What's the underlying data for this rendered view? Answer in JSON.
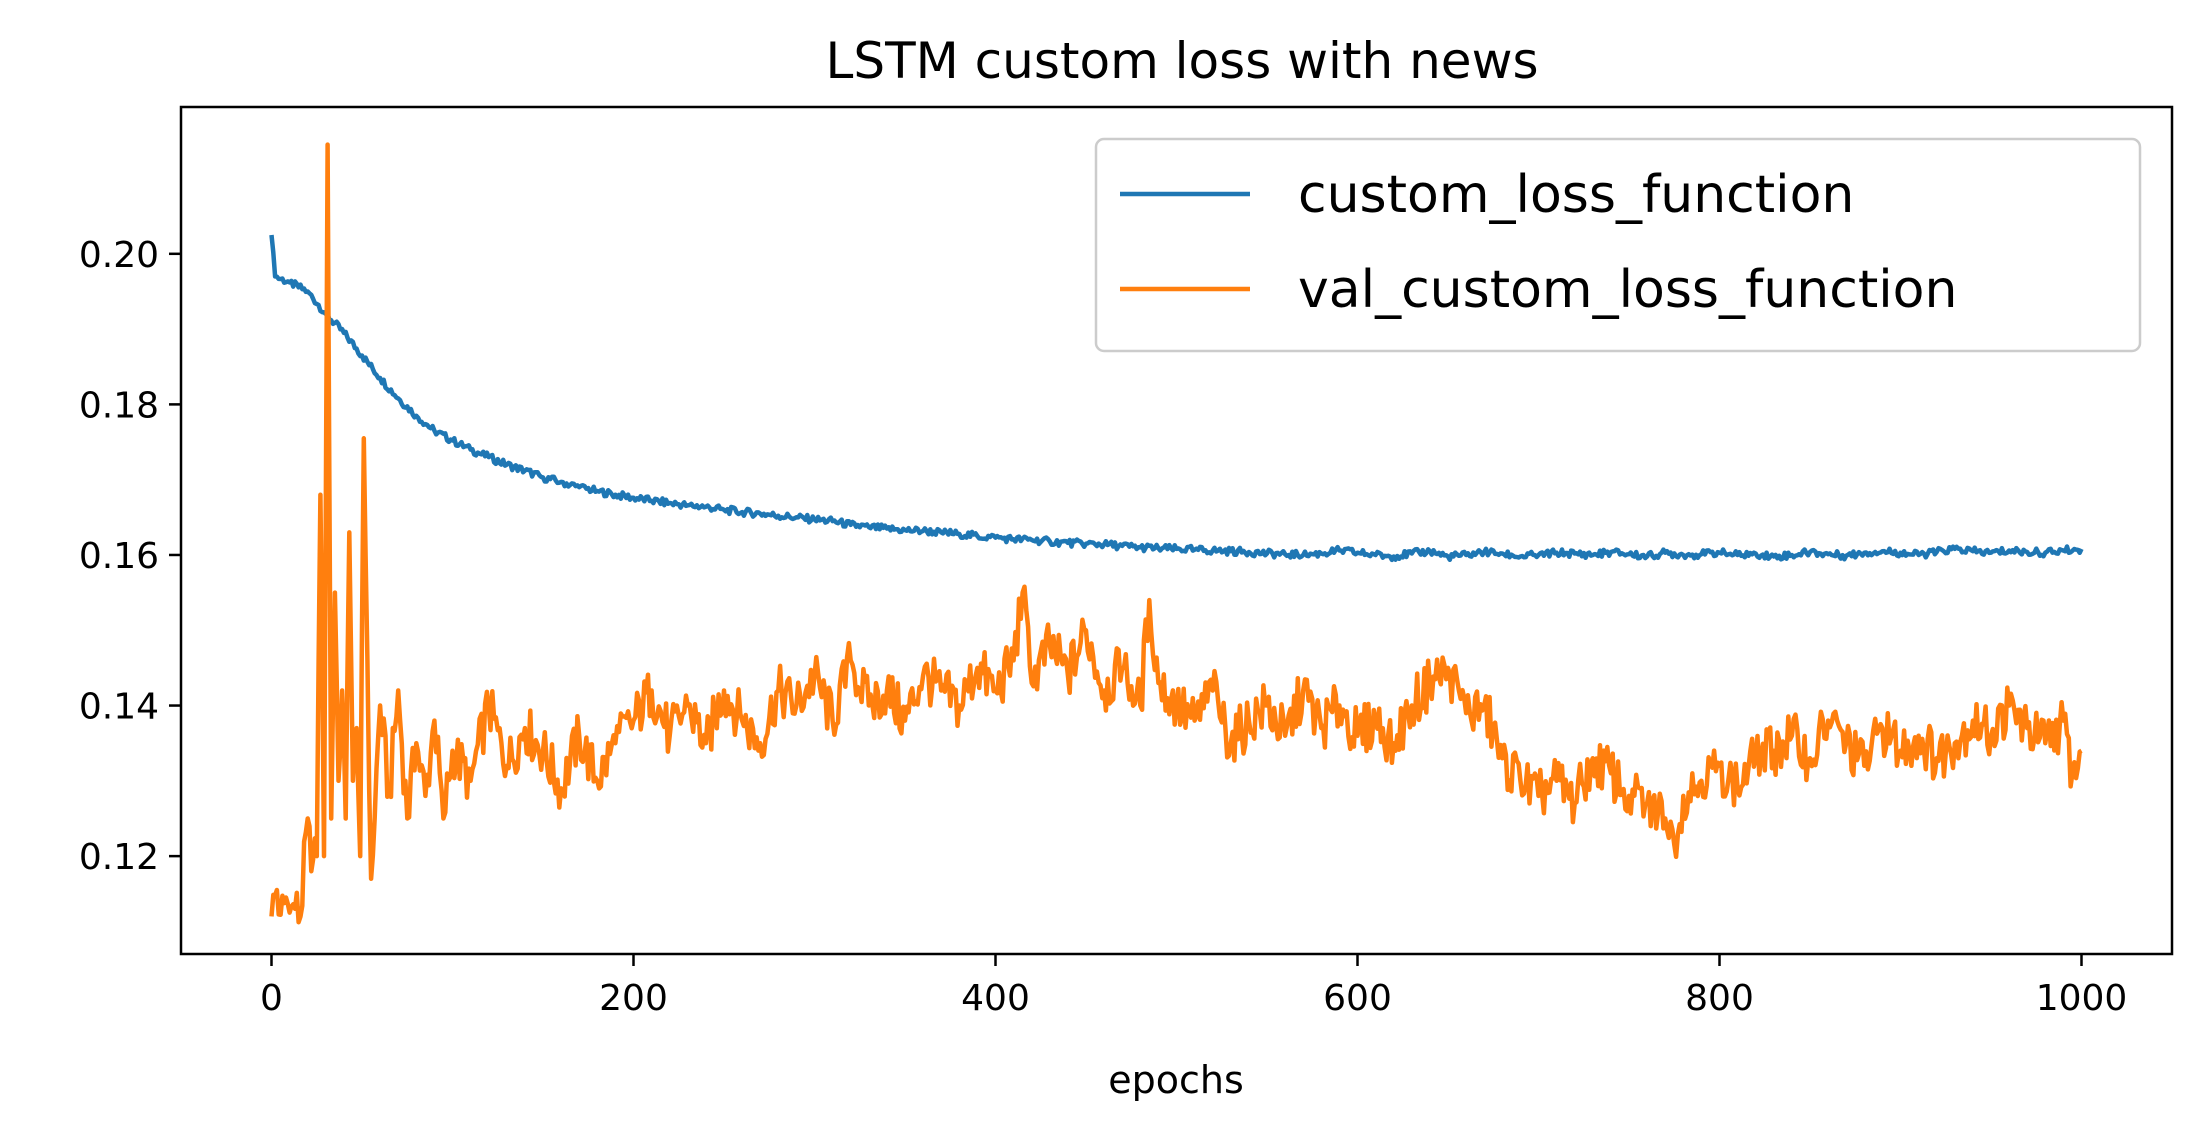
{
  "chart_data": {
    "type": "line",
    "title": "LSTM custom loss with news",
    "xlabel": "epochs",
    "ylabel": "",
    "xlim": [
      -50,
      1050
    ],
    "ylim": [
      0.107,
      0.2195
    ],
    "x_ticks": [
      0,
      200,
      400,
      600,
      800,
      1000
    ],
    "x_tick_labels": [
      "0",
      "200",
      "400",
      "600",
      "800",
      "1000"
    ],
    "y_ticks": [
      0.12,
      0.14,
      0.16,
      0.18,
      0.2
    ],
    "y_tick_labels": [
      "0.12",
      "0.14",
      "0.16",
      "0.18",
      "0.20"
    ],
    "grid": false,
    "legend_position": "top-right",
    "series": [
      {
        "name": "custom_loss_function",
        "color": "#1f77b4",
        "x": [
          0,
          2,
          10,
          20,
          30,
          40,
          50,
          60,
          70,
          80,
          90,
          100,
          110,
          120,
          130,
          140,
          150,
          160,
          170,
          180,
          190,
          200,
          210,
          220,
          230,
          240,
          250,
          260,
          270,
          280,
          290,
          300,
          310,
          320,
          330,
          340,
          350,
          360,
          370,
          380,
          390,
          400,
          410,
          420,
          430,
          440,
          450,
          460,
          470,
          480,
          490,
          500,
          510,
          520,
          530,
          540,
          550,
          560,
          570,
          580,
          590,
          600,
          610,
          620,
          630,
          640,
          650,
          660,
          670,
          680,
          690,
          700,
          710,
          720,
          730,
          740,
          750,
          760,
          770,
          780,
          790,
          800,
          810,
          820,
          830,
          840,
          850,
          860,
          870,
          880,
          890,
          900,
          910,
          920,
          930,
          940,
          950,
          960,
          970,
          980,
          990,
          1000
        ],
        "values": [
          0.2025,
          0.197,
          0.1962,
          0.195,
          0.192,
          0.1895,
          0.1865,
          0.1835,
          0.1808,
          0.1785,
          0.1765,
          0.1752,
          0.174,
          0.173,
          0.172,
          0.1712,
          0.1703,
          0.1697,
          0.169,
          0.1685,
          0.168,
          0.1676,
          0.1672,
          0.1669,
          0.1666,
          0.1664,
          0.166,
          0.1657,
          0.1655,
          0.1652,
          0.165,
          0.1647,
          0.1645,
          0.164,
          0.1637,
          0.1635,
          0.1633,
          0.1632,
          0.163,
          0.1628,
          0.1625,
          0.1623,
          0.1621,
          0.162,
          0.1618,
          0.1616,
          0.1615,
          0.1614,
          0.1612,
          0.161,
          0.1609,
          0.1608,
          0.1607,
          0.1606,
          0.1605,
          0.1604,
          0.1602,
          0.1601,
          0.16,
          0.1602,
          0.1606,
          0.1603,
          0.16,
          0.1598,
          0.1602,
          0.1605,
          0.1598,
          0.16,
          0.1604,
          0.1602,
          0.1598,
          0.16,
          0.1603,
          0.1602,
          0.16,
          0.1604,
          0.1601,
          0.1598,
          0.1603,
          0.16,
          0.1601,
          0.1603,
          0.16,
          0.1602,
          0.1598,
          0.16,
          0.1604,
          0.1601,
          0.1599,
          0.1603,
          0.1605,
          0.1603,
          0.16,
          0.1604,
          0.1608,
          0.1605,
          0.1603,
          0.1606,
          0.1604,
          0.1603,
          0.1606,
          0.1608
        ]
      },
      {
        "name": "val_custom_loss_function",
        "color": "#ff7f0e",
        "x": [
          0,
          3,
          5,
          8,
          10,
          13,
          16,
          20,
          22,
          25,
          27,
          29,
          31,
          33,
          35,
          37,
          39,
          41,
          43,
          45,
          47,
          49,
          51,
          55,
          60,
          65,
          70,
          75,
          80,
          85,
          90,
          95,
          100,
          110,
          120,
          130,
          140,
          150,
          160,
          170,
          180,
          190,
          200,
          210,
          220,
          230,
          240,
          250,
          260,
          270,
          280,
          290,
          300,
          310,
          320,
          330,
          340,
          350,
          360,
          370,
          380,
          390,
          400,
          410,
          415,
          420,
          430,
          440,
          450,
          460,
          470,
          480,
          485,
          490,
          500,
          510,
          520,
          530,
          540,
          550,
          560,
          570,
          580,
          590,
          600,
          610,
          620,
          630,
          640,
          650,
          660,
          670,
          680,
          690,
          700,
          710,
          720,
          730,
          740,
          750,
          760,
          770,
          775,
          780,
          790,
          800,
          810,
          820,
          830,
          840,
          850,
          860,
          870,
          880,
          890,
          900,
          910,
          920,
          930,
          940,
          950,
          960,
          970,
          980,
          990,
          995,
          1000
        ],
        "values": [
          0.112,
          0.1155,
          0.1122,
          0.1145,
          0.1125,
          0.113,
          0.112,
          0.125,
          0.118,
          0.12,
          0.168,
          0.12,
          0.2145,
          0.125,
          0.155,
          0.13,
          0.142,
          0.125,
          0.163,
          0.13,
          0.137,
          0.12,
          0.1755,
          0.117,
          0.14,
          0.128,
          0.142,
          0.125,
          0.135,
          0.128,
          0.138,
          0.125,
          0.134,
          0.13,
          0.14,
          0.132,
          0.137,
          0.134,
          0.129,
          0.136,
          0.13,
          0.135,
          0.138,
          0.142,
          0.136,
          0.14,
          0.135,
          0.142,
          0.138,
          0.135,
          0.142,
          0.14,
          0.144,
          0.138,
          0.146,
          0.14,
          0.142,
          0.138,
          0.144,
          0.142,
          0.14,
          0.145,
          0.142,
          0.146,
          0.155,
          0.143,
          0.148,
          0.144,
          0.15,
          0.142,
          0.145,
          0.14,
          0.154,
          0.143,
          0.14,
          0.138,
          0.142,
          0.135,
          0.138,
          0.14,
          0.136,
          0.142,
          0.137,
          0.14,
          0.136,
          0.138,
          0.135,
          0.14,
          0.143,
          0.145,
          0.139,
          0.14,
          0.133,
          0.13,
          0.128,
          0.13,
          0.127,
          0.133,
          0.131,
          0.128,
          0.127,
          0.125,
          0.1215,
          0.128,
          0.13,
          0.132,
          0.129,
          0.133,
          0.134,
          0.136,
          0.133,
          0.138,
          0.135,
          0.132,
          0.137,
          0.134,
          0.136,
          0.133,
          0.135,
          0.138,
          0.136,
          0.14,
          0.137,
          0.135,
          0.138,
          0.131,
          0.134
        ]
      }
    ]
  }
}
